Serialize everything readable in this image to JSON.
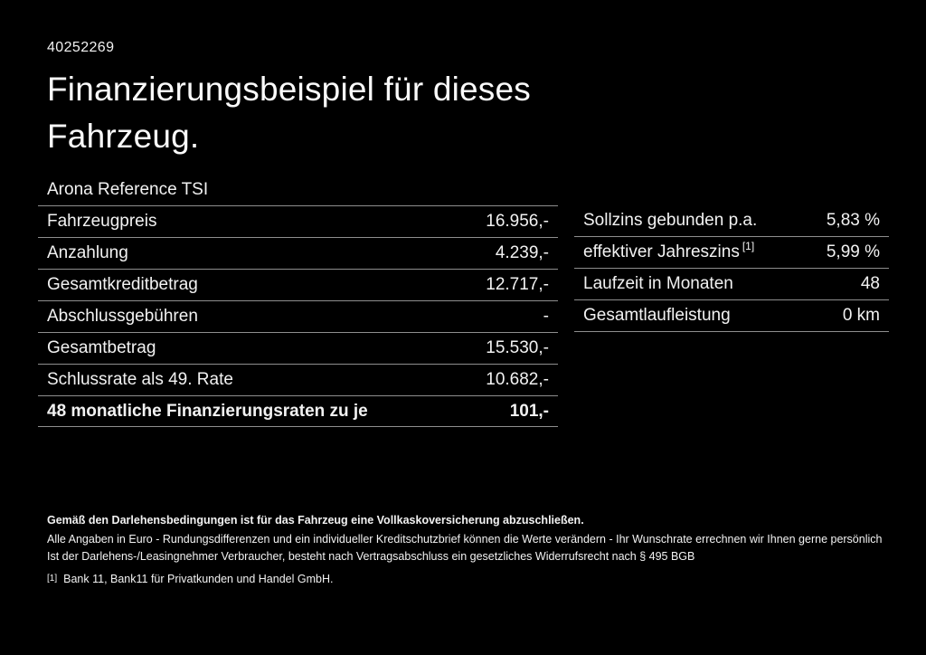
{
  "page": {
    "vehicle_id": "40252269",
    "title_line1": "Finanzierungsbeispiel für dieses",
    "title_line2": "Fahrzeug.",
    "model": "Arona Reference TSI"
  },
  "financing_table": {
    "rows": [
      {
        "label": "Fahrzeugpreis",
        "value": "16.956,-"
      },
      {
        "label": "Anzahlung",
        "value": "4.239,-"
      },
      {
        "label": "Gesamtkreditbetrag",
        "value": "12.717,-"
      },
      {
        "label": "Abschlussgebühren",
        "value": "-"
      },
      {
        "label": "Gesamtbetrag",
        "value": "15.530,-"
      },
      {
        "label": "Schlussrate als 49. Rate",
        "value": "10.682,-"
      },
      {
        "label": "48 monatliche Finanzierungsraten zu je",
        "value": "101,-",
        "emphasis": true
      }
    ]
  },
  "conditions_table": {
    "rows": [
      {
        "label": "Sollzins gebunden p.a.",
        "value": "5,83 %"
      },
      {
        "label": "effektiver Jahreszins",
        "marker": "[1]",
        "value": "5,99 %"
      },
      {
        "label": "Laufzeit in Monaten",
        "value": "48"
      },
      {
        "label": "Gesamtlaufleistung",
        "value": "0 km"
      }
    ]
  },
  "footer": {
    "insurance_note": "Gemäß den Darlehensbedingungen ist für das Fahrzeug eine Vollkaskoversicherung abzuschließen.",
    "disclaimer_rounding": "Alle Angaben in Euro - Rundungsdifferenzen und ein individueller Kreditschutzbrief können die Werte verändern - Ihr Wunschrate errechnen wir Ihnen gerne persönlich",
    "disclaimer_withdrawal": "Ist der Darlehens-/Leasingnehmer Verbraucher, besteht nach Vertragsabschluss ein gesetzliches Widerrufsrecht nach § 495 BGB",
    "footnote_marker": "[1]",
    "footnote_text": "Bank 11, Bank11 für Privatkunden und Handel GmbH."
  },
  "colors": {
    "background": "#000000",
    "text": "#f2f2f2",
    "divider": "#8e8e8e"
  }
}
